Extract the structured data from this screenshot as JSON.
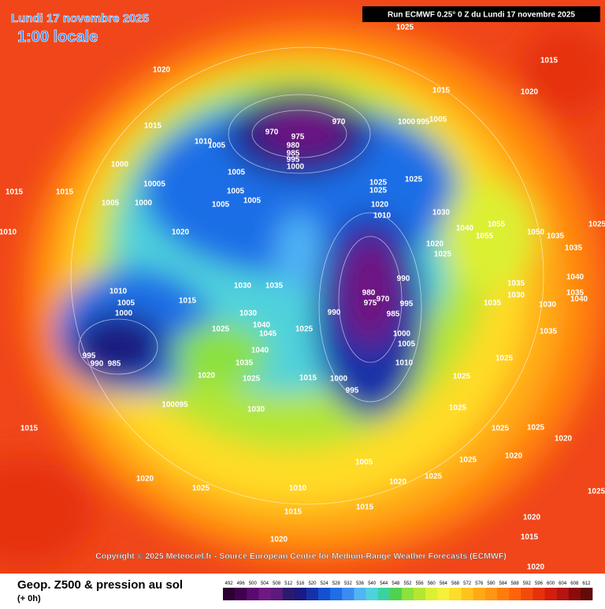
{
  "header": {
    "title": "Lundi 17 novembre 2025",
    "time": "1:00 locale",
    "run": "Run ECMWF 0.25° 0 Z du Lundi 17 novembre 2025"
  },
  "isobar_labels": [
    "1025",
    "1015",
    "1020",
    "1020",
    "1015",
    "1015",
    "970",
    "970",
    "975",
    "1000",
    "995",
    "1005",
    "1010",
    "1005",
    "980",
    "985",
    "995",
    "1000",
    "1000",
    "10005",
    "1005",
    "1015",
    "1015",
    "1005",
    "1000",
    "1005",
    "1005",
    "1005",
    "1025",
    "1025",
    "1025",
    "1020",
    "1010",
    "1030",
    "1040",
    "1055",
    "1055",
    "1050",
    "1035",
    "1025",
    "1020",
    "1025",
    "1035",
    "1020",
    "1010",
    "1030",
    "1035",
    "1010",
    "1005",
    "1000",
    "1015",
    "1030",
    "990",
    "980",
    "975",
    "970",
    "995",
    "985",
    "990",
    "1035",
    "1030",
    "1040",
    "1035",
    "1040",
    "1035",
    "1030",
    "1025",
    "1040",
    "1045",
    "1025",
    "1000",
    "1005",
    "1040",
    "1010",
    "1035",
    "995",
    "990",
    "985",
    "1020",
    "1025",
    "1015",
    "1000",
    "995",
    "1025",
    "1025",
    "1035",
    "1030",
    "100095",
    "1025",
    "1015",
    "1025",
    "1025",
    "1020",
    "1020",
    "1025",
    "1005",
    "1020",
    "1025",
    "1020",
    "1025",
    "1010",
    "1015",
    "1015",
    "1020",
    "1025",
    "1015",
    "1020",
    "1020"
  ],
  "copyright": "Copyright © 2025 Meteociel.fr - Source European Centre for Medium-Range Weather Forecasts (ECMWF)",
  "footer": {
    "title": "Geop. Z500 & pression au sol",
    "lead": "(+ 0h)"
  },
  "scale": {
    "values": [
      492,
      496,
      500,
      504,
      508,
      512,
      516,
      520,
      524,
      528,
      532,
      536,
      540,
      544,
      548,
      552,
      556,
      560,
      564,
      568,
      572,
      576,
      580,
      584,
      588,
      592,
      596,
      600,
      604,
      608,
      612
    ],
    "colors": [
      "#2b0033",
      "#40004d",
      "#5a0a6e",
      "#701882",
      "#5c1a7a",
      "#2c1a6e",
      "#1a1a80",
      "#1432a8",
      "#1450d0",
      "#1e6ee6",
      "#3c8cf0",
      "#50b4f5",
      "#50d2dc",
      "#3cd2a0",
      "#50d250",
      "#8ce13c",
      "#b4e632",
      "#dcf032",
      "#f5f03c",
      "#ffdc28",
      "#ffc31e",
      "#ffaa14",
      "#ff9614",
      "#ff7d0a",
      "#ff640a",
      "#f04b0a",
      "#e6320a",
      "#d21e0a",
      "#b41414",
      "#8c0a0a",
      "#640a0a"
    ]
  }
}
